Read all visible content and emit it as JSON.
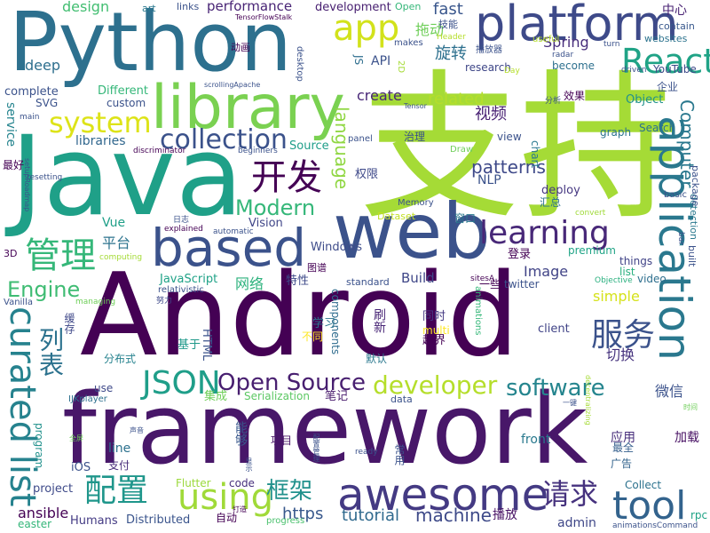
{
  "words": [
    {
      "text": "支持",
      "color": "#a5db36"
    },
    {
      "text": "Android",
      "color": "#440154"
    },
    {
      "text": "Java",
      "color": "#1fa088"
    },
    {
      "text": "framework",
      "color": "#481769"
    },
    {
      "text": "Python",
      "color": "#2d708e"
    },
    {
      "text": "web",
      "color": "#3b528b"
    },
    {
      "text": "library",
      "color": "#7ad151"
    },
    {
      "text": "platform",
      "color": "#3e4a89"
    },
    {
      "text": "based",
      "color": "#3b528b"
    },
    {
      "text": "application",
      "color": "#2a788e"
    },
    {
      "text": "awesome",
      "color": "#443a83"
    },
    {
      "text": "tool",
      "color": "#33638d"
    },
    {
      "text": "app",
      "color": "#d2e21b"
    },
    {
      "text": "React",
      "color": "#20a386"
    },
    {
      "text": "curated list",
      "color": "#26828e"
    },
    {
      "text": "system",
      "color": "#dde318"
    },
    {
      "text": "collection",
      "color": "#3b528b"
    },
    {
      "text": "learning",
      "color": "#482878"
    },
    {
      "text": "开发",
      "color": "#440154"
    },
    {
      "text": "JSON",
      "color": "#1f9e89"
    },
    {
      "text": "software",
      "color": "#25858e"
    },
    {
      "text": "developer",
      "color": "#b5de2b"
    },
    {
      "text": "Open Source",
      "color": "#481f70"
    },
    {
      "text": "using",
      "color": "#a0da39"
    },
    {
      "text": "服务",
      "color": "#3b528b"
    },
    {
      "text": "管理",
      "color": "#35b779"
    },
    {
      "text": "配置",
      "color": "#1f968b"
    },
    {
      "text": "请求",
      "color": "#46327e"
    },
    {
      "text": "列表",
      "color": "#2c728e"
    },
    {
      "text": "框架",
      "color": "#21918c"
    },
    {
      "text": "Modern",
      "color": "#35b779"
    },
    {
      "text": "Engine",
      "color": "#3fbc73"
    },
    {
      "text": "language",
      "color": "#90d743"
    },
    {
      "text": "patterns",
      "color": "#3e4989"
    },
    {
      "text": "Computer",
      "color": "#2a788e"
    },
    {
      "text": "machine",
      "color": "#3e4a89"
    },
    {
      "text": "tutorial",
      "color": "#306a8e"
    },
    {
      "text": "https",
      "color": "#38588c"
    },
    {
      "text": "fast",
      "color": "#39568c"
    },
    {
      "text": "拖动",
      "color": "#6ece58"
    },
    {
      "text": "旋转",
      "color": "#2d708e"
    },
    {
      "text": "Spring",
      "color": "#472d7b"
    },
    {
      "text": "related",
      "color": "#b5de2b"
    },
    {
      "text": "视频",
      "color": "#482173"
    },
    {
      "text": "deep",
      "color": "#2e6f8e"
    },
    {
      "text": "design",
      "color": "#42be71"
    },
    {
      "text": "performance",
      "color": "#482475"
    },
    {
      "text": "development",
      "color": "#482071"
    },
    {
      "text": "create",
      "color": "#482677"
    },
    {
      "text": "libraries",
      "color": "#31678e"
    },
    {
      "text": "service",
      "color": "#25848e"
    },
    {
      "text": "平台",
      "color": "#2c738e"
    },
    {
      "text": "网络",
      "color": "#2db27d"
    },
    {
      "text": "特性",
      "color": "#3e4a89"
    },
    {
      "text": "Build",
      "color": "#3f4788"
    },
    {
      "text": "Image",
      "color": "#414487"
    },
    {
      "text": "Vision",
      "color": "#404688"
    },
    {
      "text": "Windows",
      "color": "#3e4c8a"
    },
    {
      "text": "Vue",
      "color": "#1f9f88"
    },
    {
      "text": "JavaScript",
      "color": "#1fa287"
    },
    {
      "text": "HTML",
      "color": "#3b528b"
    },
    {
      "text": "Dataset",
      "color": "#c2df23"
    },
    {
      "text": "API",
      "color": "#3b528b"
    },
    {
      "text": "JS",
      "color": "#2e6e8e"
    },
    {
      "text": "2D",
      "color": "#a5db36"
    },
    {
      "text": "research",
      "color": "#3f4788"
    },
    {
      "text": "become",
      "color": "#2d708e"
    },
    {
      "text": "YouTube",
      "color": "#3e4a89"
    },
    {
      "text": "websites",
      "color": "#2c738e"
    },
    {
      "text": "contain",
      "color": "#38588c"
    },
    {
      "text": "中心",
      "color": "#482173"
    },
    {
      "text": "企业",
      "color": "#3b528b"
    },
    {
      "text": "Object",
      "color": "#21918c"
    },
    {
      "text": "效果",
      "color": "#440154"
    },
    {
      "text": "Search",
      "color": "#2c728e"
    },
    {
      "text": "graph",
      "color": "#2c738e"
    },
    {
      "text": "view",
      "color": "#3b528b"
    },
    {
      "text": "chart",
      "color": "#2a788e"
    },
    {
      "text": "deploy",
      "color": "#453781"
    },
    {
      "text": "汇总",
      "color": "#2d718e"
    },
    {
      "text": "things",
      "color": "#404387"
    },
    {
      "text": "video",
      "color": "#2e6f8e"
    },
    {
      "text": "premium",
      "color": "#20a486"
    },
    {
      "text": "list",
      "color": "#2ab07f"
    },
    {
      "text": "simple",
      "color": "#d5e21a"
    },
    {
      "text": "client",
      "color": "#414487"
    },
    {
      "text": "同时",
      "color": "#443a83"
    },
    {
      "text": "越界",
      "color": "#440154"
    },
    {
      "text": "切换",
      "color": "#46337e"
    },
    {
      "text": "刷新",
      "color": "#482576"
    },
    {
      "text": "默认",
      "color": "#2a788e"
    },
    {
      "text": "微信",
      "color": "#3b528b"
    },
    {
      "text": "应用",
      "color": "#472d7b"
    },
    {
      "text": "加载",
      "color": "#471063"
    },
    {
      "text": "最全",
      "color": "#355f8d"
    },
    {
      "text": "广告",
      "color": "#33638d"
    },
    {
      "text": "Collect",
      "color": "#2c728e"
    },
    {
      "text": "admin",
      "color": "#3f4788"
    },
    {
      "text": "rpc",
      "color": "#20a386"
    },
    {
      "text": "播放",
      "color": "#471164"
    },
    {
      "text": "front",
      "color": "#29798e"
    },
    {
      "text": "项目",
      "color": "#481668"
    },
    {
      "text": "能够",
      "color": "#38588c"
    },
    {
      "text": "集成",
      "color": "#6ece58"
    },
    {
      "text": "Serialization",
      "color": "#5cc863"
    },
    {
      "text": "笔记",
      "color": "#481a6c"
    },
    {
      "text": "components",
      "color": "#2f6c8e"
    },
    {
      "text": "学习",
      "color": "#2b758e"
    },
    {
      "text": "不同",
      "color": "#fde725"
    },
    {
      "text": "基于",
      "color": "#1f998a"
    },
    {
      "text": "分布式",
      "color": "#26828e"
    },
    {
      "text": "缓存",
      "color": "#3f4889"
    },
    {
      "text": "use",
      "color": "#3e4989"
    },
    {
      "text": "line",
      "color": "#2c718e"
    },
    {
      "text": "program",
      "color": "#21918c"
    },
    {
      "text": "iOS",
      "color": "#3b528b"
    },
    {
      "text": "支付",
      "color": "#472c7a"
    },
    {
      "text": "project",
      "color": "#3e4a89"
    },
    {
      "text": "ansible",
      "color": "#440154"
    },
    {
      "text": "easter",
      "color": "#34b679"
    },
    {
      "text": "Humans",
      "color": "#443b84"
    },
    {
      "text": "Distributed",
      "color": "#3a548c"
    },
    {
      "text": "自动",
      "color": "#440154"
    },
    {
      "text": "code",
      "color": "#472f7d"
    },
    {
      "text": "Flutter",
      "color": "#9bd93c"
    },
    {
      "text": "progress",
      "color": "#4ac16d"
    },
    {
      "text": "IJKplayer",
      "color": "#2d708e"
    },
    {
      "text": "3D",
      "color": "#440154"
    },
    {
      "text": "Vanilla",
      "color": "#3b528b"
    },
    {
      "text": "relativistic",
      "color": "#3b528b"
    },
    {
      "text": "努力",
      "color": "#3e4989"
    },
    {
      "text": "standard",
      "color": "#3b528b"
    },
    {
      "text": "sitesA",
      "color": "#440154"
    },
    {
      "text": "一些",
      "color": "#440154"
    },
    {
      "text": "twitter",
      "color": "#3b528b"
    },
    {
      "text": "Objective",
      "color": "#2ab07f"
    },
    {
      "text": "built",
      "color": "#3b528b"
    },
    {
      "text": "detection",
      "color": "#2a788e"
    },
    {
      "text": "package",
      "color": "#3b528b"
    },
    {
      "text": "basic",
      "color": "#3b528b"
    },
    {
      "text": "bar",
      "color": "#3b528b"
    },
    {
      "text": "convert",
      "color": "#a0da39"
    },
    {
      "text": "Memory",
      "color": "#3b528b"
    },
    {
      "text": "窗口",
      "color": "#2a788e"
    },
    {
      "text": "登录",
      "color": "#440154"
    },
    {
      "text": "权限",
      "color": "#3e4989"
    },
    {
      "text": "NLP",
      "color": "#3b528b"
    },
    {
      "text": "Draw",
      "color": "#6ece58"
    },
    {
      "text": "治理",
      "color": "#3b528b"
    },
    {
      "text": "Source",
      "color": "#1f9e89"
    },
    {
      "text": "panel",
      "color": "#3b528b"
    },
    {
      "text": "Different",
      "color": "#35b779"
    },
    {
      "text": "custom",
      "color": "#3b528b"
    },
    {
      "text": "complete",
      "color": "#3b528b"
    },
    {
      "text": "SVG",
      "color": "#3b528b"
    },
    {
      "text": "main",
      "color": "#3b528b"
    },
    {
      "text": "最好",
      "color": "#440154"
    },
    {
      "text": "setupRoadmap",
      "color": "#3b528b"
    },
    {
      "text": "resetting",
      "color": "#3b528b"
    },
    {
      "text": "discriminator",
      "color": "#440154"
    },
    {
      "text": "explained",
      "color": "#440154"
    },
    {
      "text": "computing",
      "color": "#a5db36"
    },
    {
      "text": "automatic",
      "color": "#3b528b"
    },
    {
      "text": "日志",
      "color": "#3b528b"
    },
    {
      "text": "图谱",
      "color": "#440154"
    },
    {
      "text": "managing",
      "color": "#6ece58"
    },
    {
      "text": "beginners",
      "color": "#3b528b"
    },
    {
      "text": "scrollingApache",
      "color": "#3b528b"
    },
    {
      "text": "TensorFlowStalk",
      "color": "#440154"
    },
    {
      "text": "动画",
      "color": "#440154"
    },
    {
      "text": "art",
      "color": "#2a788e"
    },
    {
      "text": "links",
      "color": "#3b528b"
    },
    {
      "text": "Open",
      "color": "#35b779"
    },
    {
      "text": "技能",
      "color": "#3b528b"
    },
    {
      "text": "makes",
      "color": "#3b528b"
    },
    {
      "text": "Header",
      "color": "#b5de2b"
    },
    {
      "text": "播放器",
      "color": "#3b528b"
    },
    {
      "text": "useful",
      "color": "#b5de2b"
    },
    {
      "text": "radar",
      "color": "#3b528b"
    },
    {
      "text": "turn",
      "color": "#3b528b"
    },
    {
      "text": "driven",
      "color": "#3b528b"
    },
    {
      "text": "Day",
      "color": "#b5de2b"
    },
    {
      "text": "分析",
      "color": "#3b528b"
    },
    {
      "text": "desktop",
      "color": "#3b528b"
    },
    {
      "text": "multi",
      "color": "#fde725"
    },
    {
      "text": "animations",
      "color": "#35b779"
    },
    {
      "text": "data",
      "color": "#3b528b"
    },
    {
      "text": "常用",
      "color": "#3b528b"
    },
    {
      "text": "ready",
      "color": "#3b528b"
    },
    {
      "text": "配置管理",
      "color": "#3b528b"
    },
    {
      "text": "一键",
      "color": "#3b528b"
    },
    {
      "text": "时间",
      "color": "#6ece58"
    },
    {
      "text": "decentralizing",
      "color": "#a5db36"
    },
    {
      "text": "声音",
      "color": "#3b528b"
    },
    {
      "text": "全屏",
      "color": "#6ece58"
    },
    {
      "text": "显示",
      "color": "#3b528b"
    },
    {
      "text": "打造",
      "color": "#440154"
    },
    {
      "text": "animationsCommand",
      "color": "#3b528b"
    },
    {
      "text": "Tensor",
      "color": "#3b528b"
    }
  ]
}
